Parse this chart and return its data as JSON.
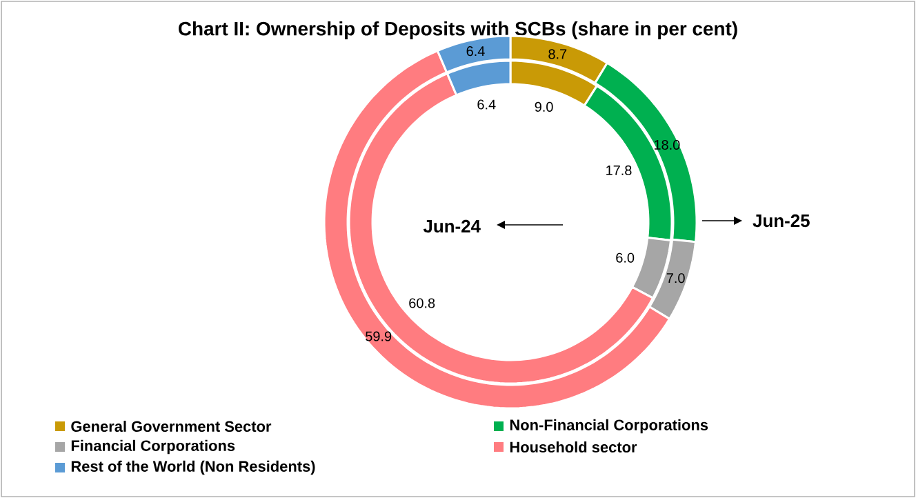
{
  "chart_data": {
    "type": "donut",
    "title": "Chart II: Ownership of Deposits with SCBs (share in per cent)",
    "categories": [
      "General Government Sector",
      "Non-Financial Corporations",
      "Financial Corporations",
      "Household sector",
      "Rest of the World (Non Residents)"
    ],
    "colors": [
      "#c99a06",
      "#00b050",
      "#a6a6a6",
      "#ff7c80",
      "#5b9bd5"
    ],
    "series": [
      {
        "name": "Jun-24",
        "values": [
          9.0,
          17.8,
          6.0,
          60.8,
          6.4
        ],
        "value_labels": [
          "9.0",
          "17.8",
          "6.0",
          "60.8",
          "6.4"
        ]
      },
      {
        "name": "Jun-25",
        "values": [
          8.7,
          18.0,
          7.0,
          59.9,
          6.4
        ],
        "value_labels": [
          "8.7",
          "18.0",
          "7.0",
          "59.9",
          "6.4"
        ]
      }
    ],
    "legend": "bottom"
  }
}
